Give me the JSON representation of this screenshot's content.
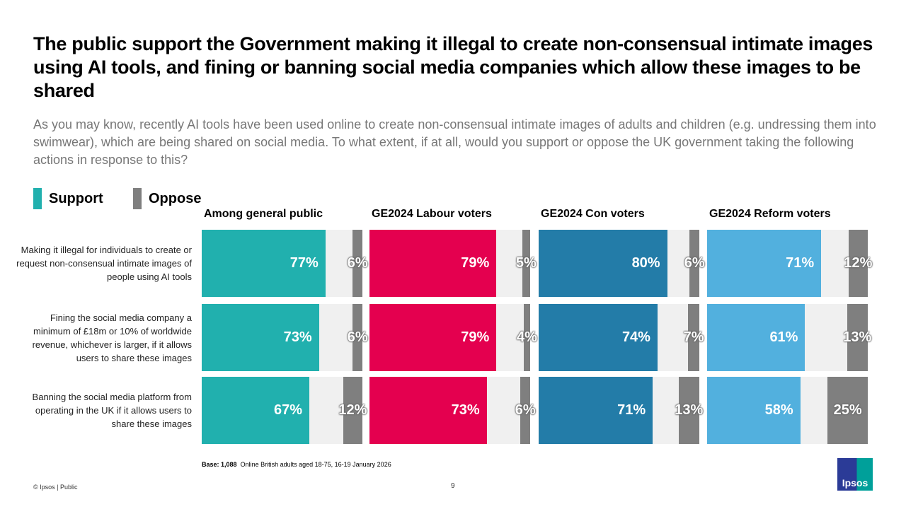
{
  "title": "The public support the Government making it illegal to create non-consensual intimate images using AI tools, and fining or banning social media companies which allow these images to be shared",
  "subtitle": "As you may know, recently AI tools have been used online to create non-consensual intimate images of adults and children (e.g. undressing them into swimwear), which are being shared on social media. To what extent, if at all, would you support or oppose the UK government taking the following actions in response to this?",
  "footer": {
    "base_label": "Base: 1,088",
    "base_text": "Online British adults aged 18-75, 16-19 January 2026",
    "copyright": "© Ipsos | Public",
    "page": "9",
    "logo": "Ipsos"
  },
  "chart_data": {
    "type": "bar",
    "legend": [
      {
        "name": "Support",
        "color": "#21b0ae"
      },
      {
        "name": "Oppose",
        "color": "#7f7f7f"
      }
    ],
    "categories": [
      "Making it illegal for individuals to create or request non-consensual intimate images of people using AI tools",
      "Fining the social media company a minimum of £18m or 10% of worldwide revenue, whichever is larger, if it allows users to share these images",
      "Banning the social media platform from operating in the UK if it allows users to share these images"
    ],
    "panels": [
      {
        "name": "Among general public",
        "color": "#21b0ae",
        "support": [
          77,
          73,
          67
        ],
        "oppose": [
          6,
          6,
          12
        ]
      },
      {
        "name": "GE2024 Labour voters",
        "color": "#e4004f",
        "support": [
          79,
          79,
          73
        ],
        "oppose": [
          5,
          4,
          6
        ]
      },
      {
        "name": "GE2024 Con voters",
        "color": "#237ca8",
        "support": [
          80,
          74,
          71
        ],
        "oppose": [
          6,
          7,
          13
        ]
      },
      {
        "name": "GE2024 Reform voters",
        "color": "#52b0de",
        "support": [
          71,
          61,
          58
        ],
        "oppose": [
          12,
          13,
          25
        ]
      }
    ],
    "xlim": [
      0,
      100
    ]
  }
}
